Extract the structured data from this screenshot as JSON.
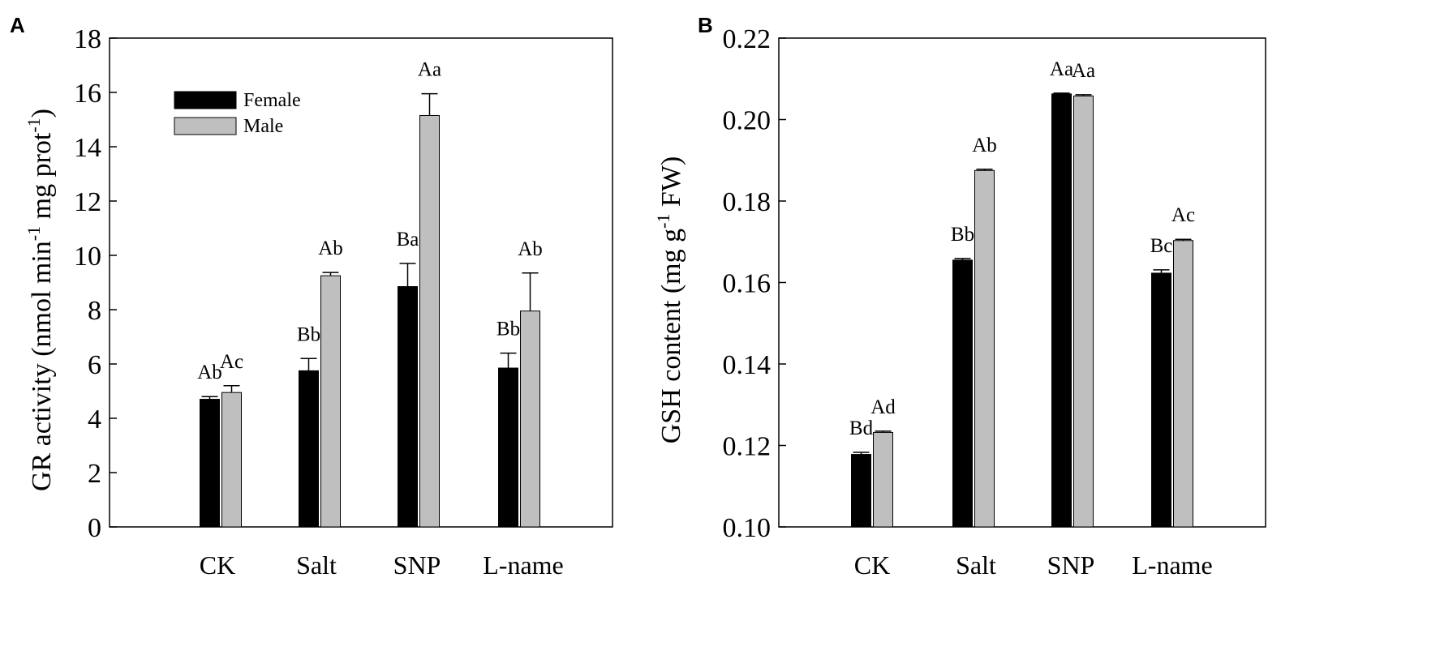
{
  "chart_data": [
    {
      "type": "bar",
      "panel": "A",
      "ylabel": "GR activity (nmol min-1 mg prot-1)",
      "ylabel_parts": {
        "a": "GR activity (nmol min",
        "b": "-1",
        "c": " mg prot",
        "d": "-1",
        "e": ")"
      },
      "ylim": [
        0,
        18
      ],
      "yticks": [
        0,
        2,
        4,
        6,
        8,
        10,
        12,
        14,
        16,
        18
      ],
      "ytick_labels": [
        "0",
        "2",
        "4",
        "6",
        "8",
        "10",
        "12",
        "14",
        "16",
        "18"
      ],
      "categories": [
        "CK",
        "Salt",
        "SNP",
        "L-name"
      ],
      "legend": {
        "position": "top-left"
      },
      "series": [
        {
          "name": "Female",
          "color": "#000000",
          "values": [
            4.7,
            5.75,
            8.85,
            5.85
          ],
          "errors": [
            0.1,
            0.45,
            0.85,
            0.55
          ],
          "labels": [
            "Ab",
            "Bb",
            "Ba",
            "Bb"
          ]
        },
        {
          "name": "Male",
          "color": "#bfbfbf",
          "values": [
            4.95,
            9.25,
            15.15,
            7.95
          ],
          "errors": [
            0.25,
            0.12,
            0.8,
            1.4
          ],
          "labels": [
            "Ac",
            "Ab",
            "Aa",
            "Ab"
          ]
        }
      ]
    },
    {
      "type": "bar",
      "panel": "B",
      "ylabel": "GSH content (mg g-1 FW)",
      "ylabel_parts": {
        "a": "GSH content (mg g",
        "b": "-1",
        "c": " FW)"
      },
      "ylim": [
        0.1,
        0.22
      ],
      "yticks": [
        0.1,
        0.12,
        0.14,
        0.16,
        0.18,
        0.2,
        0.22
      ],
      "ytick_labels": [
        "0.10",
        "0.12",
        "0.14",
        "0.16",
        "0.18",
        "0.20",
        "0.22"
      ],
      "categories": [
        "CK",
        "Salt",
        "SNP",
        "L-name"
      ],
      "series": [
        {
          "name": "Female",
          "color": "#000000",
          "values": [
            0.1178,
            0.1655,
            0.2063,
            0.1623
          ],
          "errors": [
            0.0005,
            0.0004,
            0.0002,
            0.0008
          ],
          "labels": [
            "Bd",
            "Bb",
            "Aa",
            "Bc"
          ]
        },
        {
          "name": "Male",
          "color": "#bfbfbf",
          "values": [
            0.1232,
            0.1875,
            0.2058,
            0.1703
          ],
          "errors": [
            0.0003,
            0.0003,
            0.0003,
            0.0003
          ],
          "labels": [
            "Ad",
            "Ab",
            "Aa",
            "Ac"
          ]
        }
      ]
    }
  ]
}
